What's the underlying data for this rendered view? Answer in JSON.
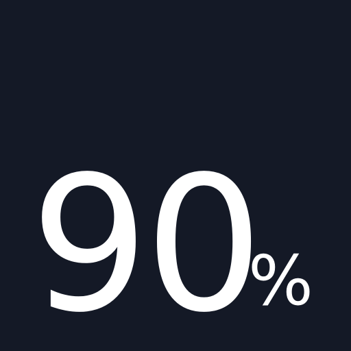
{
  "stat": {
    "value": "90",
    "unit": "%"
  },
  "colors": {
    "background": "#141926",
    "text": "#ffffff"
  }
}
